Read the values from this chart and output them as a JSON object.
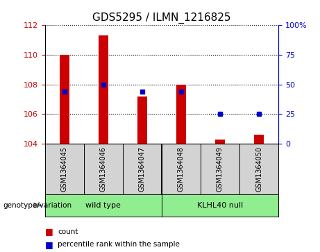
{
  "title": "GDS5295 / ILMN_1216825",
  "samples": [
    "GSM1364045",
    "GSM1364046",
    "GSM1364047",
    "GSM1364048",
    "GSM1364049",
    "GSM1364050"
  ],
  "red_values": [
    110.0,
    111.3,
    107.2,
    108.0,
    104.3,
    104.6
  ],
  "blue_percentiles": [
    44,
    50,
    44,
    44,
    25,
    25
  ],
  "ylim_left": [
    104,
    112
  ],
  "ylim_right": [
    0,
    100
  ],
  "yticks_left": [
    104,
    106,
    108,
    110,
    112
  ],
  "yticks_right": [
    0,
    25,
    50,
    75,
    100
  ],
  "group_wt_label": "wild type",
  "group_kl_label": "KLHL40 null",
  "group_label": "genotype/variation",
  "legend_count": "count",
  "legend_percentile": "percentile rank within the sample",
  "red_color": "#cc0000",
  "blue_color": "#0000cc",
  "bar_bg_color": "#d3d3d3",
  "group_color": "#90ee90",
  "plot_bg_color": "#ffffff",
  "title_fontsize": 11,
  "tick_fontsize": 8,
  "bar_width": 0.25
}
